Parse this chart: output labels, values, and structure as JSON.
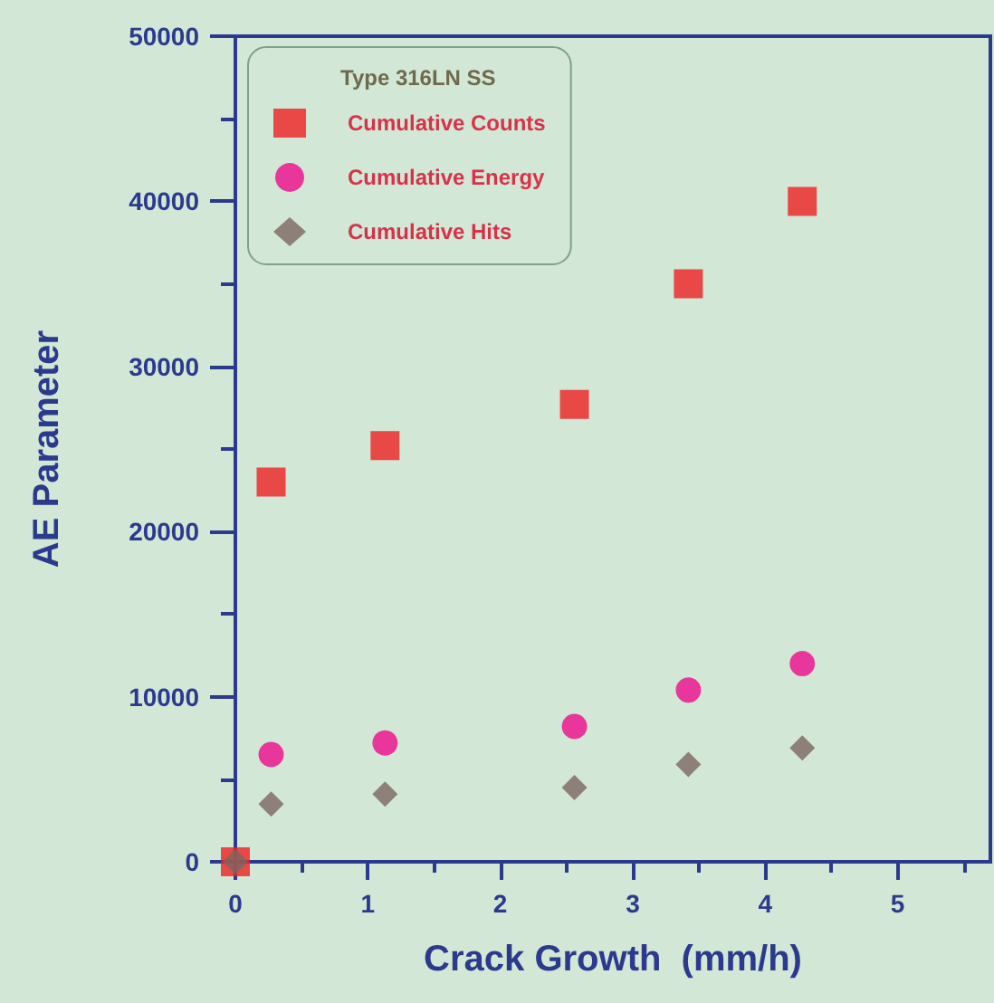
{
  "chart_data": {
    "type": "scatter",
    "xlabel": "Crack Growth  (mm/h)",
    "ylabel": "AE Parameter",
    "legend_title": "Type 316LN SS",
    "x": [
      0,
      0.27,
      1.13,
      2.56,
      3.42,
      4.28
    ],
    "series": [
      {
        "name": "Cumulative Counts",
        "color": "#ee2222",
        "marker": "square",
        "values": [
          0,
          23000,
          25200,
          27700,
          35000,
          40000
        ]
      },
      {
        "name": "Cumulative Energy",
        "color": "#ee0a8c",
        "marker": "circle",
        "values": [
          null,
          6500,
          7200,
          8200,
          10400,
          12000
        ]
      },
      {
        "name": "Cumulative Hits",
        "color": "#7a6660",
        "marker": "diamond",
        "values": [
          0,
          3500,
          4100,
          4500,
          5900,
          6900
        ]
      }
    ],
    "xlim": [
      0,
      5.7
    ],
    "xticks": [
      0,
      1,
      2,
      3,
      4,
      5
    ],
    "ylim": [
      0,
      50000
    ],
    "yticks": [
      0,
      10000,
      20000,
      30000,
      40000,
      50000
    ],
    "grid": false,
    "legend": "top left"
  }
}
